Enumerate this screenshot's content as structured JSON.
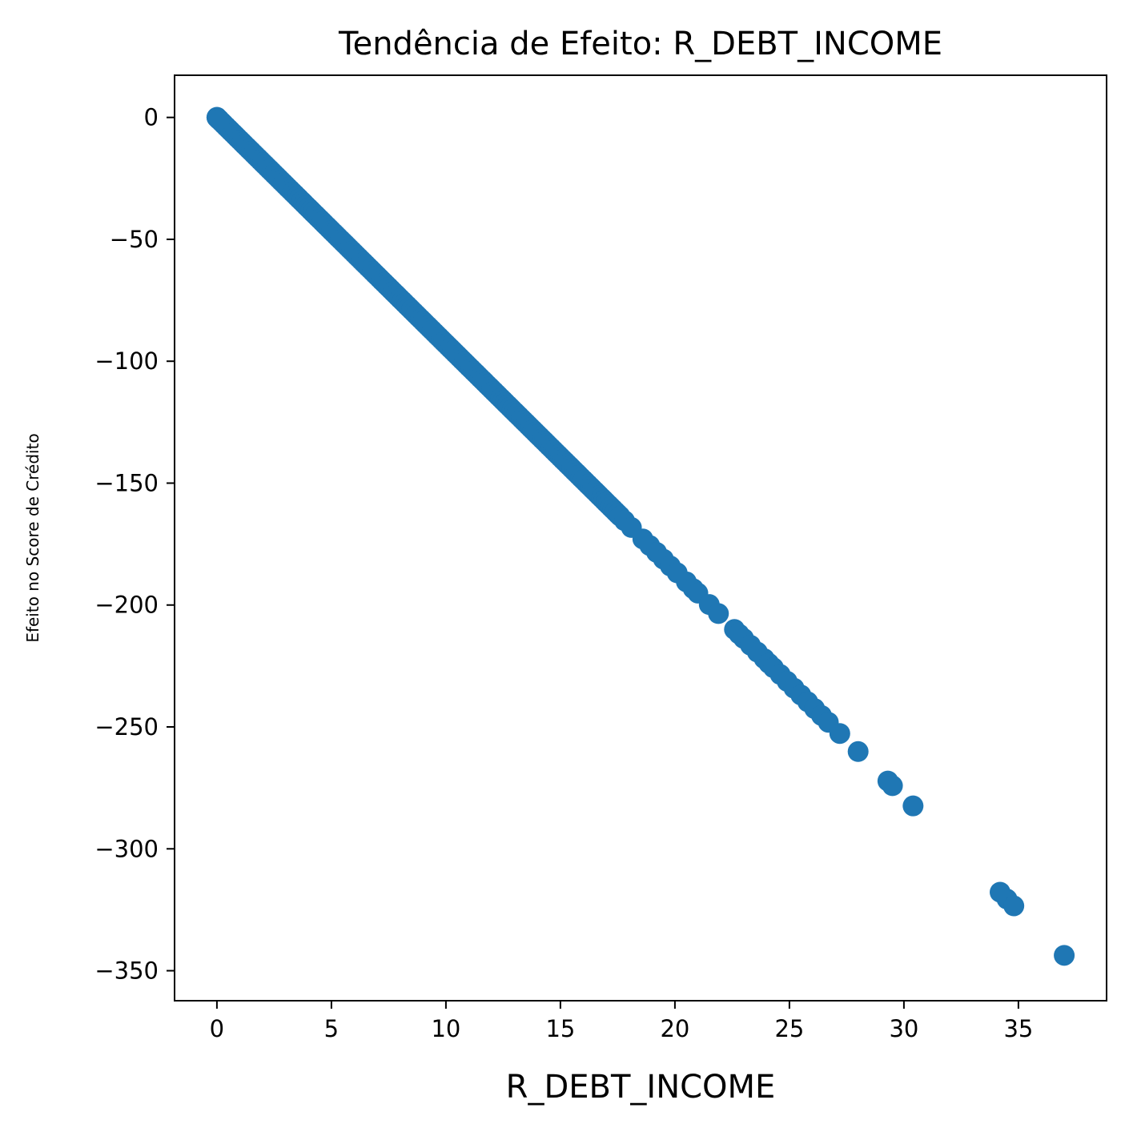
{
  "chart_data": {
    "type": "scatter",
    "title": "Tendência de Efeito: R_DEBT_INCOME",
    "xlabel": "R_DEBT_INCOME",
    "ylabel": "Efeito no Score de Crédito",
    "xlim": [
      -1.85,
      38.85
    ],
    "ylim": [
      -362.3,
      17.3
    ],
    "x_ticks": [
      0,
      5,
      10,
      15,
      20,
      25,
      30,
      35
    ],
    "y_ticks": [
      0,
      -50,
      -100,
      -150,
      -200,
      -250,
      -300,
      -350
    ],
    "x_tick_labels": [
      "0",
      "5",
      "10",
      "15",
      "20",
      "25",
      "30",
      "35"
    ],
    "y_tick_labels": [
      "0",
      "−50",
      "−100",
      "−150",
      "−200",
      "−250",
      "−300",
      "−350"
    ],
    "grid": false,
    "color": "#1f77b4",
    "dense_segment": {
      "x_start": 0,
      "x_end": 17.6,
      "slope": -9.29,
      "step": 0.1
    },
    "points": [
      [
        0,
        0
      ],
      [
        0.05,
        -0.5
      ],
      [
        0.1,
        -0.9
      ],
      [
        17.8,
        -165.4
      ],
      [
        18.1,
        -168.2
      ],
      [
        18.6,
        -172.9
      ],
      [
        18.9,
        -175.6
      ],
      [
        19.2,
        -178.4
      ],
      [
        19.5,
        -181.2
      ],
      [
        19.8,
        -184.0
      ],
      [
        20.1,
        -186.8
      ],
      [
        20.5,
        -190.5
      ],
      [
        20.8,
        -193.3
      ],
      [
        21.0,
        -195.1
      ],
      [
        21.5,
        -199.8
      ],
      [
        21.9,
        -203.5
      ],
      [
        22.6,
        -210.0
      ],
      [
        22.8,
        -211.9
      ],
      [
        23.0,
        -213.7
      ],
      [
        23.3,
        -216.5
      ],
      [
        23.6,
        -219.3
      ],
      [
        23.9,
        -222.0
      ],
      [
        24.1,
        -223.9
      ],
      [
        24.3,
        -225.7
      ],
      [
        24.6,
        -228.5
      ],
      [
        24.9,
        -231.3
      ],
      [
        25.2,
        -234.1
      ],
      [
        25.5,
        -236.9
      ],
      [
        25.8,
        -239.7
      ],
      [
        26.1,
        -242.5
      ],
      [
        26.4,
        -245.3
      ],
      [
        26.7,
        -248.1
      ],
      [
        27.2,
        -252.7
      ],
      [
        28.0,
        -260.1
      ],
      [
        29.3,
        -272.2
      ],
      [
        29.5,
        -274.1
      ],
      [
        30.4,
        -282.4
      ],
      [
        34.2,
        -317.8
      ],
      [
        34.5,
        -320.6
      ],
      [
        34.8,
        -323.4
      ],
      [
        37.0,
        -343.7
      ]
    ]
  }
}
